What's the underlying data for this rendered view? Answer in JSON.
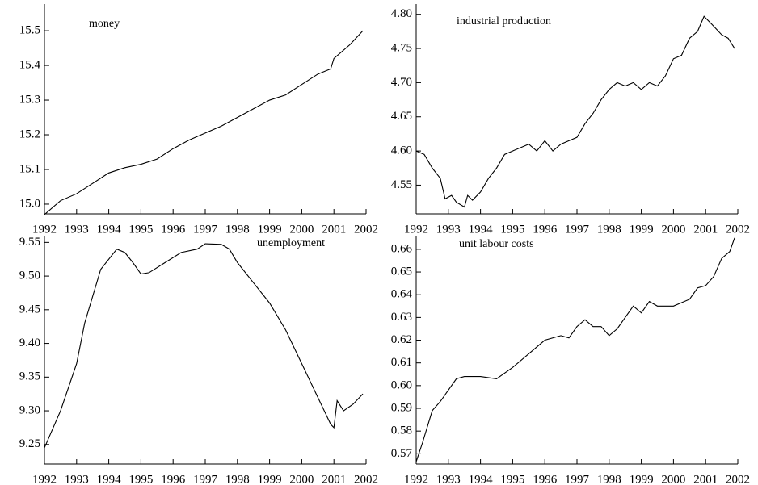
{
  "chart_data": [
    {
      "type": "line",
      "title": "money",
      "series": [
        {
          "color": "#000000",
          "x": [
            1992.0,
            1992.5,
            1993.0,
            1993.5,
            1994.0,
            1994.5,
            1995.0,
            1995.5,
            1996.0,
            1996.5,
            1997.0,
            1997.5,
            1998.0,
            1998.5,
            1999.0,
            1999.5,
            2000.0,
            2000.5,
            2000.9,
            2001.0,
            2001.5,
            2001.9
          ],
          "values": [
            14.97,
            15.01,
            15.03,
            15.06,
            15.09,
            15.105,
            15.115,
            15.13,
            15.16,
            15.185,
            15.205,
            15.225,
            15.25,
            15.275,
            15.3,
            15.315,
            15.345,
            15.375,
            15.39,
            15.42,
            15.46,
            15.5
          ]
        }
      ],
      "xlim": [
        1992,
        2002
      ],
      "xticks": [
        1992,
        1993,
        1994,
        1995,
        1996,
        1997,
        1998,
        1999,
        2000,
        2001,
        2002
      ],
      "ylim": [
        14.972,
        15.577
      ],
      "yticks": [
        {
          "value": 15,
          "label": "15.0"
        },
        15.1,
        15.2,
        15.3,
        15.4,
        15.5
      ]
    },
    {
      "type": "line",
      "title": "industrial production",
      "series": [
        {
          "color": "#000000",
          "x": [
            1992.0,
            1992.25,
            1992.5,
            1992.75,
            1992.9,
            1993.1,
            1993.25,
            1993.5,
            1993.6,
            1993.75,
            1994.0,
            1994.25,
            1994.5,
            1994.75,
            1995.0,
            1995.25,
            1995.5,
            1995.75,
            1996.0,
            1996.25,
            1996.5,
            1996.75,
            1997.0,
            1997.25,
            1997.5,
            1997.75,
            1998.0,
            1998.25,
            1998.5,
            1998.75,
            1999.0,
            1999.25,
            1999.5,
            1999.75,
            2000.0,
            2000.25,
            2000.5,
            2000.75,
            2000.95,
            2001.2,
            2001.5,
            2001.7,
            2001.9
          ],
          "values": [
            4.6,
            4.595,
            4.575,
            4.56,
            4.53,
            4.535,
            4.525,
            4.518,
            4.535,
            4.528,
            4.54,
            4.56,
            4.575,
            4.595,
            4.6,
            4.605,
            4.61,
            4.6,
            4.615,
            4.6,
            4.61,
            4.615,
            4.62,
            4.64,
            4.655,
            4.675,
            4.69,
            4.7,
            4.695,
            4.7,
            4.69,
            4.7,
            4.695,
            4.71,
            4.735,
            4.74,
            4.765,
            4.775,
            4.797,
            4.785,
            4.77,
            4.765,
            4.75
          ]
        }
      ],
      "xlim": [
        1992,
        2002
      ],
      "xticks": [
        1992,
        1993,
        1994,
        1995,
        1996,
        1997,
        1998,
        1999,
        2000,
        2001,
        2002
      ],
      "ylim": [
        4.508,
        4.815
      ],
      "yticks": [
        4.55,
        {
          "value": 4.6,
          "label": "4.60"
        },
        4.65,
        {
          "value": 4.7,
          "label": "4.70"
        },
        4.75,
        {
          "value": 4.8,
          "label": "4.80"
        }
      ]
    },
    {
      "type": "line",
      "title": "unemployment",
      "series": [
        {
          "color": "#000000",
          "x": [
            1992.0,
            1992.5,
            1993.0,
            1993.25,
            1993.75,
            1994.25,
            1994.5,
            1994.75,
            1995.0,
            1995.25,
            1995.75,
            1996.25,
            1996.75,
            1997.0,
            1997.5,
            1997.75,
            1998.0,
            1998.5,
            1999.0,
            1999.5,
            2000.0,
            2000.5,
            2000.9,
            2001.0,
            2001.1,
            2001.3,
            2001.6,
            2001.9
          ],
          "values": [
            9.245,
            9.3,
            9.37,
            9.43,
            9.51,
            9.54,
            9.535,
            9.52,
            9.503,
            9.505,
            9.52,
            9.535,
            9.54,
            9.548,
            9.547,
            9.54,
            9.52,
            9.49,
            9.46,
            9.42,
            9.37,
            9.32,
            9.28,
            9.275,
            9.315,
            9.3,
            9.31,
            9.325
          ]
        }
      ],
      "xlim": [
        1992,
        2002
      ],
      "xticks": [
        1992,
        1993,
        1994,
        1995,
        1996,
        1997,
        1998,
        1999,
        2000,
        2001,
        2002
      ],
      "ylim": [
        9.221,
        9.56
      ],
      "yticks": [
        9.25,
        {
          "value": 9.3,
          "label": "9.30"
        },
        9.35,
        {
          "value": 9.4,
          "label": "9.40"
        },
        9.45,
        {
          "value": 9.5,
          "label": "9.50"
        },
        9.55
      ]
    },
    {
      "type": "line",
      "title": "unit labour costs",
      "series": [
        {
          "color": "#000000",
          "x": [
            1992.0,
            1992.2,
            1992.5,
            1992.75,
            1993.0,
            1993.25,
            1993.5,
            1994.0,
            1994.5,
            1995.0,
            1995.5,
            1996.0,
            1996.5,
            1996.75,
            1997.0,
            1997.25,
            1997.5,
            1997.75,
            1998.0,
            1998.25,
            1998.5,
            1998.75,
            1999.0,
            1999.25,
            1999.5,
            2000.0,
            2000.5,
            2000.75,
            2001.0,
            2001.25,
            2001.5,
            2001.75,
            2001.9
          ],
          "values": [
            0.5665,
            0.575,
            0.589,
            0.593,
            0.598,
            0.603,
            0.604,
            0.604,
            0.603,
            0.608,
            0.614,
            0.62,
            0.622,
            0.621,
            0.626,
            0.629,
            0.626,
            0.626,
            0.622,
            0.625,
            0.63,
            0.635,
            0.632,
            0.637,
            0.635,
            0.635,
            0.638,
            0.643,
            0.644,
            0.648,
            0.656,
            0.659,
            0.665
          ]
        }
      ],
      "xlim": [
        1992,
        2002
      ],
      "xticks": [
        1992,
        1993,
        1994,
        1995,
        1996,
        1997,
        1998,
        1999,
        2000,
        2001,
        2002
      ],
      "ylim": [
        0.5655,
        0.666
      ],
      "yticks": [
        0.57,
        0.58,
        0.59,
        {
          "value": 0.6,
          "label": "0.60"
        },
        0.61,
        0.62,
        0.63,
        0.64,
        0.65,
        0.66
      ]
    }
  ]
}
